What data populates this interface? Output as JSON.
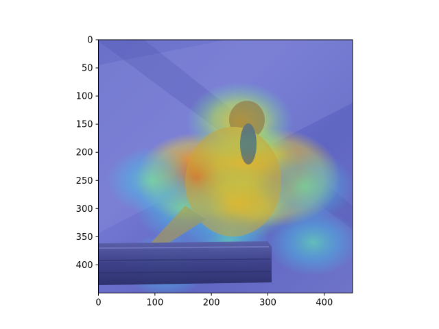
{
  "chart_data": {
    "type": "heatmap",
    "title": "",
    "xlabel": "",
    "ylabel": "",
    "xlim": [
      0,
      450
    ],
    "ylim": [
      450,
      0
    ],
    "x_ticks": [
      0,
      100,
      200,
      300,
      400
    ],
    "y_ticks": [
      0,
      50,
      100,
      150,
      200,
      250,
      300,
      350,
      400
    ],
    "grid": false,
    "legend": "none",
    "colormap": "jet",
    "overlay": "photo of a bird perched on a wooden post with a saliency heatmap overlay",
    "hotspots": [
      {
        "x": 250,
        "y": 245,
        "level": 0.75
      },
      {
        "x": 310,
        "y": 245,
        "level": 0.9
      },
      {
        "x": 175,
        "y": 245,
        "level": 0.75
      },
      {
        "x": 260,
        "y": 220,
        "level": 0.6
      },
      {
        "x": 250,
        "y": 290,
        "level": 0.55
      },
      {
        "x": 150,
        "y": 300,
        "level": 0.4
      },
      {
        "x": 365,
        "y": 260,
        "level": 0.45
      },
      {
        "x": 380,
        "y": 360,
        "level": 0.35
      },
      {
        "x": 95,
        "y": 250,
        "level": 0.35
      },
      {
        "x": 250,
        "y": 145,
        "level": 0.55
      },
      {
        "x": 120,
        "y": 400,
        "level": 0.3
      },
      {
        "x": 230,
        "y": 360,
        "level": 0.3
      }
    ],
    "colors": {
      "background_tint": "#6d73cf",
      "hot": "#e8421e",
      "warm": "#f2d22e",
      "cool": "#5fe0b4",
      "axis": "#000000"
    }
  }
}
